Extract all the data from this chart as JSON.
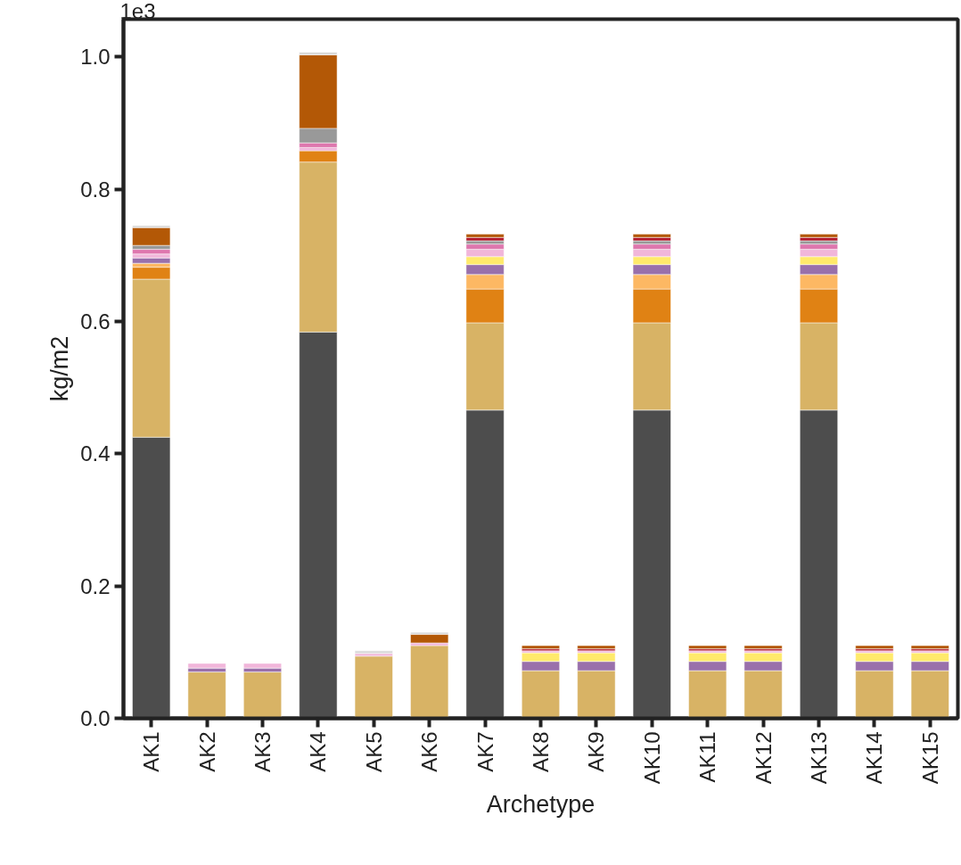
{
  "chart_data": {
    "type": "bar",
    "stacked": true,
    "xlabel": "Archetype",
    "ylabel": "kg/m2",
    "annotations": [
      "1e3"
    ],
    "categories": [
      "AK1",
      "AK2",
      "AK3",
      "AK4",
      "AK5",
      "AK6",
      "AK7",
      "AK8",
      "AK9",
      "AK10",
      "AK11",
      "AK12",
      "AK13",
      "AK14",
      "AK15"
    ],
    "series": [
      {
        "color": "#4d4d4d",
        "values": [
          0.425,
          null,
          null,
          0.584,
          null,
          null,
          0.466,
          null,
          null,
          0.466,
          null,
          null,
          0.466,
          null,
          null
        ]
      },
      {
        "color": "#d8b365",
        "values": [
          0.239,
          0.07,
          0.07,
          0.257,
          0.094,
          0.11,
          0.132,
          0.072,
          0.072,
          0.132,
          0.072,
          0.072,
          0.132,
          0.072,
          0.072
        ]
      },
      {
        "color": "#e08214",
        "values": [
          0.018,
          null,
          null,
          0.017,
          null,
          null,
          0.051,
          null,
          null,
          0.051,
          null,
          null,
          0.051,
          null,
          null
        ]
      },
      {
        "color": "#fdb863",
        "values": [
          0.006,
          null,
          null,
          null,
          null,
          null,
          0.022,
          null,
          null,
          0.022,
          null,
          null,
          0.022,
          null,
          null
        ]
      },
      {
        "color": "#9970ab",
        "values": [
          0.008,
          0.006,
          0.006,
          null,
          null,
          null,
          0.015,
          0.014,
          0.014,
          0.015,
          0.014,
          0.014,
          0.015,
          0.014,
          0.014
        ]
      },
      {
        "color": "#ffea6b",
        "values": [
          null,
          null,
          null,
          null,
          null,
          null,
          0.012,
          0.013,
          0.013,
          0.012,
          0.013,
          0.013,
          0.012,
          0.013,
          0.013
        ]
      },
      {
        "color": "#f1b6da",
        "values": [
          0.006,
          0.007,
          0.007,
          0.005,
          0.004,
          0.004,
          0.011,
          0.003,
          0.003,
          0.011,
          0.003,
          0.003,
          0.011,
          0.003,
          0.003
        ]
      },
      {
        "color": "#de77ae",
        "values": [
          0.007,
          null,
          null,
          0.007,
          null,
          null,
          0.008,
          null,
          null,
          0.008,
          null,
          null,
          0.008,
          null,
          null
        ]
      },
      {
        "color": "#999999",
        "values": [
          0.006,
          null,
          null,
          0.022,
          null,
          null,
          0.005,
          null,
          null,
          0.005,
          null,
          null,
          0.005,
          null,
          null
        ]
      },
      {
        "color": "#b2182b",
        "values": [
          null,
          null,
          null,
          null,
          null,
          null,
          0.005,
          0.003,
          0.003,
          0.005,
          0.003,
          0.003,
          0.005,
          0.003,
          0.003
        ]
      },
      {
        "color": "#b35806",
        "values": [
          0.027,
          null,
          null,
          0.111,
          null,
          0.013,
          0.005,
          0.005,
          0.005,
          0.005,
          0.005,
          0.005,
          0.005,
          0.005,
          0.005
        ]
      },
      {
        "color": "#d9d9d9",
        "values": [
          0.003,
          null,
          null,
          0.004,
          0.004,
          0.003,
          null,
          null,
          null,
          null,
          null,
          null,
          null,
          null,
          null
        ]
      }
    ],
    "ylim": [
      0,
      1.057
    ],
    "yticks": [
      {
        "value": 0,
        "label": "0.0"
      },
      0.2,
      0.4,
      0.6,
      0.8,
      {
        "value": 1,
        "label": "1.0"
      }
    ],
    "grid": false
  }
}
